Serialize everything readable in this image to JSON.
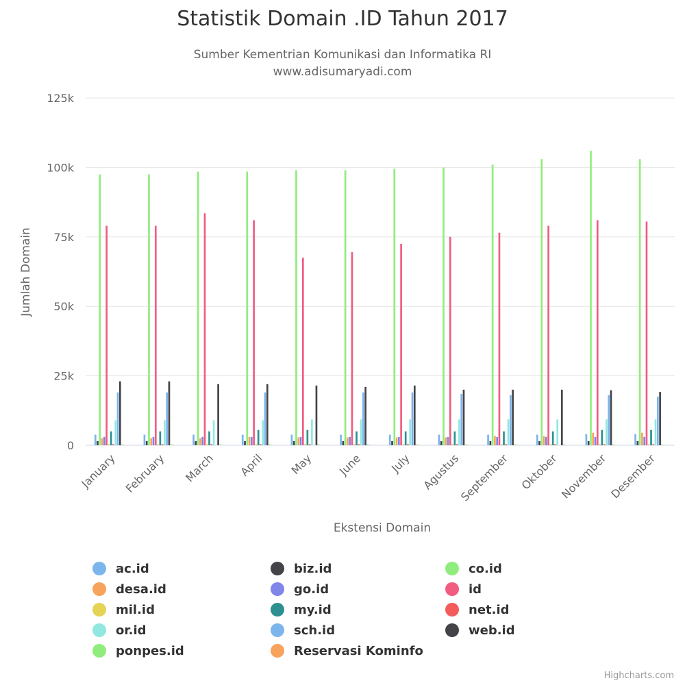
{
  "title": "Statistik Domain .ID Tahun 2017",
  "subtitle_lines": [
    "Sumber Kementrian Komunikasi dan Informatika RI",
    "www.adisumaryadi.com"
  ],
  "credits": "Highcharts.com",
  "chart_data": {
    "type": "bar",
    "title": "Statistik Domain .ID Tahun 2017",
    "subtitle": "Sumber Kementrian Komunikasi dan Informatika RI www.adisumaryadi.com",
    "xlabel": "Ekstensi Domain",
    "ylabel": "Jumlah Domain",
    "ylim": [
      0,
      125000
    ],
    "yticks": [
      {
        "value": 0,
        "label": "0"
      },
      {
        "value": 25000,
        "label": "25k"
      },
      {
        "value": 50000,
        "label": "50k"
      },
      {
        "value": 75000,
        "label": "75k"
      },
      {
        "value": 100000,
        "label": "100k"
      },
      {
        "value": 125000,
        "label": "125k"
      }
    ],
    "grid": true,
    "legend_position": "bottom",
    "categories": [
      "January",
      "February",
      "March",
      "April",
      "May",
      "June",
      "July",
      "Agustus",
      "September",
      "Oktober",
      "November",
      "Desember"
    ],
    "series": [
      {
        "name": "ac.id",
        "color": "#7cb5ec",
        "values": [
          3800,
          3800,
          3800,
          3800,
          3800,
          3800,
          3800,
          3800,
          3800,
          3800,
          4000,
          4000
        ]
      },
      {
        "name": "biz.id",
        "color": "#434348",
        "values": [
          1500,
          1500,
          1500,
          1500,
          1500,
          1500,
          1500,
          1500,
          1500,
          1500,
          1500,
          1500
        ]
      },
      {
        "name": "co.id",
        "color": "#90ed7d",
        "values": [
          97500,
          97500,
          98500,
          98500,
          99000,
          99000,
          99500,
          100000,
          101000,
          103000,
          106000,
          103000
        ]
      },
      {
        "name": "desa.id",
        "color": "#f7a35c",
        "values": [
          2500,
          2500,
          2500,
          3000,
          2800,
          2800,
          2800,
          2800,
          3300,
          3300,
          4500,
          4500
        ]
      },
      {
        "name": "go.id",
        "color": "#8085e9",
        "values": [
          3000,
          3000,
          3000,
          3000,
          3000,
          3000,
          3000,
          3000,
          3000,
          3000,
          3000,
          3000
        ]
      },
      {
        "name": "id",
        "color": "#f15c80",
        "values": [
          79000,
          79000,
          83500,
          81000,
          67500,
          69500,
          72500,
          75000,
          76500,
          79000,
          81000,
          80500
        ]
      },
      {
        "name": "mil.id",
        "color": "#e4d354",
        "values": [
          400,
          400,
          400,
          400,
          400,
          400,
          400,
          400,
          400,
          400,
          400,
          400
        ]
      },
      {
        "name": "my.id",
        "color": "#2b908f",
        "values": [
          5000,
          5000,
          5000,
          5500,
          5500,
          5000,
          5000,
          5000,
          5000,
          5000,
          5500,
          5500
        ]
      },
      {
        "name": "net.id",
        "color": "#f45b5b",
        "values": [
          400,
          400,
          400,
          400,
          400,
          400,
          400,
          400,
          400,
          400,
          400,
          400
        ]
      },
      {
        "name": "or.id",
        "color": "#91e8e1",
        "values": [
          9000,
          9000,
          9000,
          9000,
          9300,
          9300,
          9300,
          9300,
          9300,
          9300,
          9300,
          9300
        ]
      },
      {
        "name": "sch.id",
        "color": "#7cb5ec",
        "values": [
          19000,
          19000,
          0,
          19000,
          0,
          19000,
          19000,
          18500,
          18000,
          0,
          18000,
          17500
        ]
      },
      {
        "name": "web.id",
        "color": "#434348",
        "values": [
          23000,
          23000,
          22000,
          22000,
          21500,
          21000,
          21500,
          20000,
          20000,
          20000,
          19800,
          19200
        ]
      },
      {
        "name": "ponpes.id",
        "color": "#90ed7d",
        "values": [
          300,
          300,
          300,
          300,
          300,
          300,
          300,
          300,
          300,
          300,
          300,
          300
        ]
      },
      {
        "name": "Reservasi Kominfo",
        "color": "#f7a35c",
        "values": [
          100,
          100,
          100,
          100,
          100,
          100,
          100,
          100,
          100,
          100,
          100,
          100
        ]
      }
    ]
  }
}
